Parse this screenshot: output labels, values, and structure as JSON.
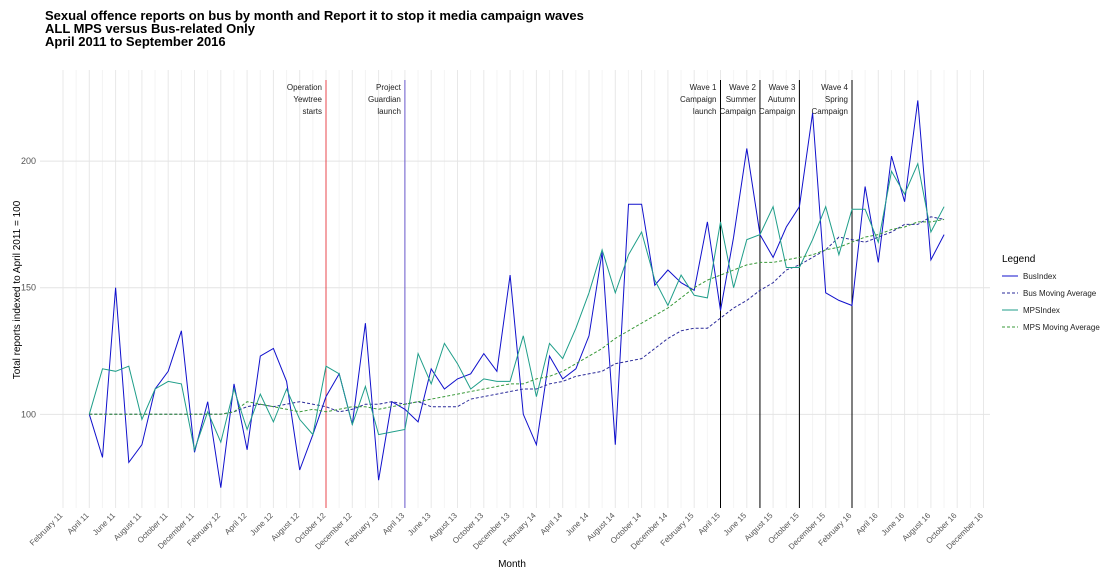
{
  "chart_data": {
    "type": "line",
    "title": [
      "Sexual offence reports on bus by month and Report it to stop it media campaign waves",
      "ALL MPS versus Bus-related Only",
      "April 2011 to September 2016"
    ],
    "x_label": "Month",
    "y_label": "Total reports indexed to April 2011 = 100",
    "legend_title": "Legend",
    "legend_position": "right",
    "grid": true,
    "categories": [
      "February 11",
      null,
      "April 11",
      null,
      "June 11",
      null,
      "August 11",
      null,
      "October 11",
      null,
      "December 11",
      null,
      "February 12",
      null,
      "April 12",
      null,
      "June 12",
      null,
      "August 12",
      null,
      "October 12",
      null,
      "December 12",
      null,
      "February 13",
      null,
      "April 13",
      null,
      "June 13",
      null,
      "August 13",
      null,
      "October 13",
      null,
      "December 13",
      null,
      "February 14",
      null,
      "April 14",
      null,
      "June 14",
      null,
      "August 14",
      null,
      "October 14",
      null,
      "December 14",
      null,
      "February 15",
      null,
      "April 15",
      null,
      "June 15",
      null,
      "August 15",
      null,
      "October 15",
      null,
      "December 15",
      null,
      "February 16",
      null,
      "April 16",
      null,
      "June 16",
      null,
      "August 16",
      null,
      "October 16",
      null,
      "December 16"
    ],
    "ylim": [
      63,
      236
    ],
    "yticks": [
      100,
      150,
      200
    ],
    "series": [
      {
        "name": "BusIndex",
        "color": "#1010cc",
        "dashed": false,
        "values": [
          null,
          null,
          100,
          83,
          150,
          81,
          88,
          110,
          117,
          133,
          85,
          105,
          71,
          112,
          86,
          123,
          126,
          113,
          78,
          92,
          107,
          116,
          96,
          136,
          74,
          105,
          102,
          97,
          118,
          110,
          114,
          116,
          124,
          117,
          155,
          100,
          88,
          123,
          114,
          118,
          131,
          164,
          88,
          183,
          183,
          151,
          157,
          152,
          149,
          176,
          141,
          170,
          205,
          171,
          162,
          174,
          182,
          219,
          148,
          145,
          143,
          190,
          160,
          202,
          184,
          224,
          161,
          171,
          null,
          null,
          null
        ]
      },
      {
        "name": "Bus Moving Average",
        "color": "#2a2a9a",
        "dashed": true,
        "values": [
          null,
          null,
          100,
          100,
          100,
          100,
          100,
          100,
          100,
          100,
          100,
          100,
          100,
          101,
          103,
          104,
          103,
          104,
          105,
          104,
          103,
          101,
          102,
          104,
          104,
          105,
          104,
          105,
          103,
          103,
          103,
          106,
          107,
          108,
          109,
          110,
          110,
          112,
          113,
          115,
          116,
          117,
          120,
          121,
          122,
          126,
          130,
          133,
          134,
          134,
          138,
          142,
          145,
          149,
          152,
          157,
          159,
          162,
          165,
          170,
          169,
          168,
          170,
          172,
          175,
          175,
          178,
          177,
          null,
          null,
          null
        ]
      },
      {
        "name": "MPSIndex",
        "color": "#1f9e89",
        "dashed": false,
        "values": [
          null,
          null,
          100,
          118,
          117,
          119,
          98,
          110,
          113,
          112,
          86,
          101,
          89,
          110,
          94,
          108,
          97,
          110,
          98,
          92,
          119,
          116,
          96,
          111,
          92,
          93,
          94,
          124,
          112,
          128,
          120,
          110,
          114,
          113,
          113,
          131,
          107,
          128,
          122,
          134,
          148,
          165,
          148,
          163,
          172,
          153,
          143,
          155,
          147,
          146,
          176,
          150,
          169,
          171,
          182,
          158,
          158,
          169,
          182,
          163,
          181,
          181,
          168,
          196,
          187,
          199,
          172,
          182,
          null,
          null,
          null
        ]
      },
      {
        "name": "MPS Moving Average",
        "color": "#3a9a3a",
        "dashed": true,
        "values": [
          null,
          null,
          100,
          100,
          100,
          100,
          100,
          100,
          100,
          100,
          100,
          100,
          100,
          101,
          105,
          104,
          103,
          102,
          101,
          102,
          101,
          102,
          103,
          103,
          102,
          103,
          104,
          105,
          106,
          107,
          108,
          109,
          110,
          111,
          112,
          112,
          114,
          115,
          117,
          120,
          123,
          126,
          130,
          133,
          136,
          139,
          142,
          146,
          150,
          153,
          155,
          157,
          159,
          160,
          160,
          161,
          162,
          163,
          165,
          166,
          168,
          170,
          171,
          173,
          174,
          176,
          176,
          177,
          null,
          null,
          null
        ]
      }
    ],
    "events": [
      {
        "x": "October 12",
        "color": "#e8474c",
        "label": [
          "Operation",
          "Yewtree",
          "starts"
        ]
      },
      {
        "x": "April 13",
        "color": "#6a5acd",
        "label": [
          "Project",
          "Guardian",
          "launch"
        ]
      },
      {
        "x": "April 15",
        "color": "#000000",
        "label": [
          "Wave 1",
          "Campaign",
          "launch"
        ]
      },
      {
        "x": "July 15",
        "color": "#000000",
        "label": [
          "Wave 2",
          "Summer",
          "Campaign"
        ]
      },
      {
        "x": "October 15",
        "color": "#000000",
        "label": [
          "Wave 3",
          "Autumn",
          "Campaign"
        ]
      },
      {
        "x": "February 16",
        "color": "#000000",
        "label": [
          "Wave 4",
          "Spring",
          "Campaign"
        ]
      }
    ]
  }
}
